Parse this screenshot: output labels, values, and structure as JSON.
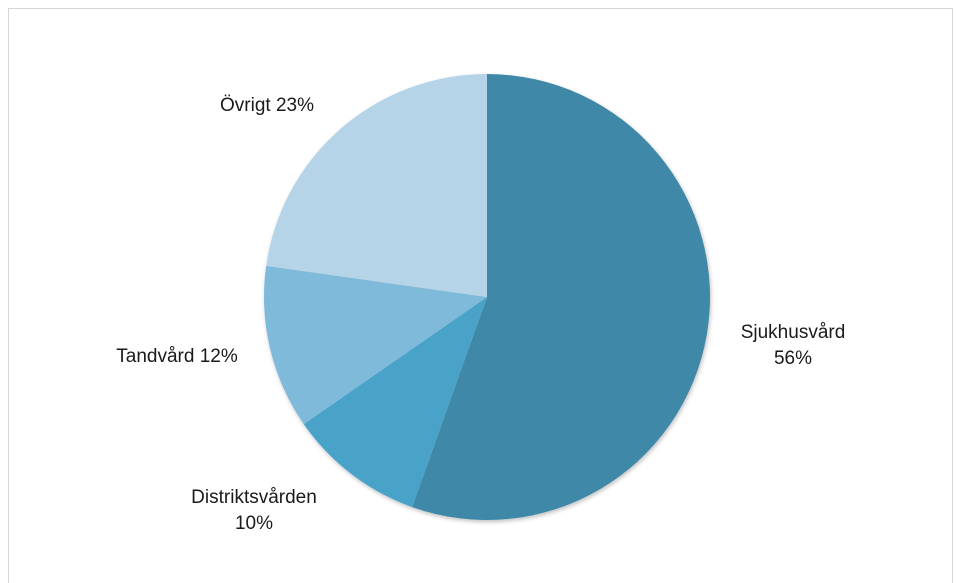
{
  "chart_data": {
    "type": "pie",
    "title": "",
    "start_angle_deg": 0,
    "direction": "clockwise",
    "slices": [
      {
        "label": "Sjukhusvård",
        "percent_label": "56%",
        "value": 56,
        "color": "#3f88a7"
      },
      {
        "label": "Distriktsvården",
        "percent_label": "10%",
        "value": 10,
        "color": "#4aa3c8"
      },
      {
        "label": "Tandvård",
        "percent_label": "12%",
        "value": 12,
        "color": "#7fbadb"
      },
      {
        "label": "Övrigt",
        "percent_label": "23%",
        "value": 23,
        "color": "#b5d4e7"
      }
    ]
  }
}
